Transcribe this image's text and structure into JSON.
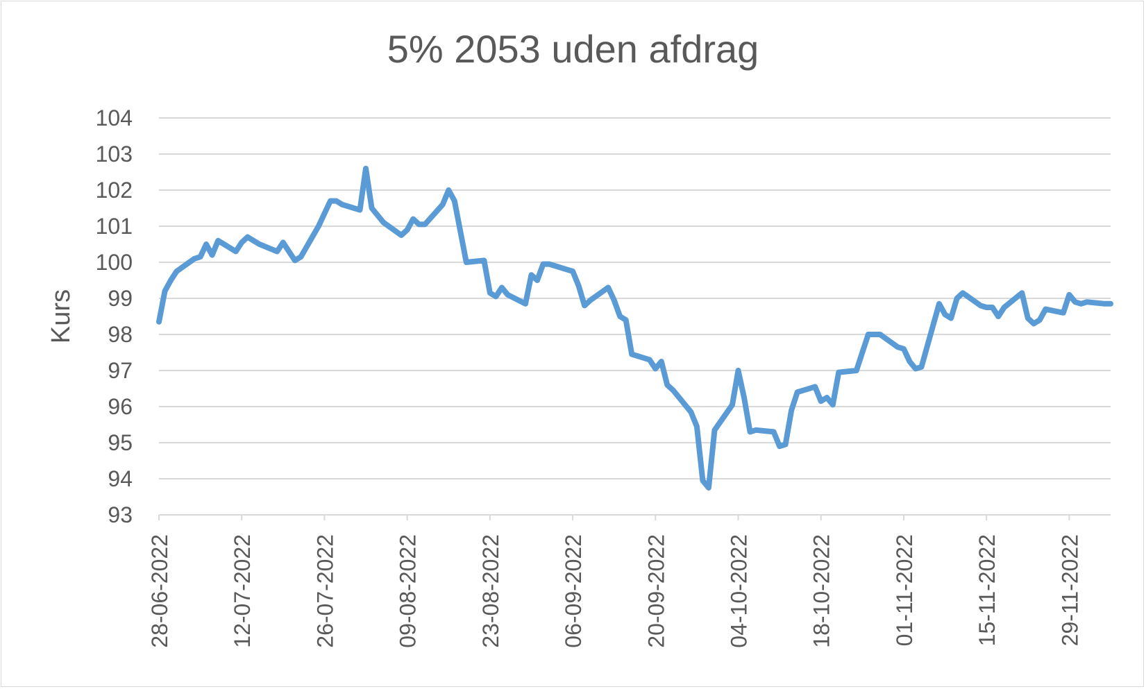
{
  "chart_data": {
    "type": "line",
    "title": "5% 2053 uden afdrag",
    "xlabel": "",
    "ylabel": "Kurs",
    "ylim": [
      93,
      104
    ],
    "yticks": [
      "93",
      "94",
      "95",
      "96",
      "97",
      "98",
      "99",
      "100",
      "101",
      "102",
      "103",
      "104"
    ],
    "x_tick_labels": [
      "28-06-2022",
      "12-07-2022",
      "26-07-2022",
      "09-08-2022",
      "23-08-2022",
      "06-09-2022",
      "20-09-2022",
      "04-10-2022",
      "18-10-2022",
      "01-11-2022",
      "15-11-2022",
      "29-11-2022"
    ],
    "grid": true,
    "legend": "none",
    "line_color": "#5b9bd5",
    "series": [
      {
        "x": [
          "28-06-2022",
          "29-06-2022",
          "30-06-2022",
          "01-07-2022",
          "04-07-2022",
          "05-07-2022",
          "06-07-2022",
          "07-07-2022",
          "08-07-2022",
          "11-07-2022",
          "12-07-2022",
          "13-07-2022",
          "14-07-2022",
          "15-07-2022",
          "18-07-2022",
          "19-07-2022",
          "20-07-2022",
          "21-07-2022",
          "22-07-2022",
          "25-07-2022",
          "26-07-2022",
          "27-07-2022",
          "28-07-2022",
          "29-07-2022",
          "01-08-2022",
          "02-08-2022",
          "03-08-2022",
          "04-08-2022",
          "05-08-2022",
          "08-08-2022",
          "09-08-2022",
          "10-08-2022",
          "11-08-2022",
          "12-08-2022",
          "15-08-2022",
          "16-08-2022",
          "17-08-2022",
          "18-08-2022",
          "19-08-2022",
          "22-08-2022",
          "23-08-2022",
          "24-08-2022",
          "25-08-2022",
          "26-08-2022",
          "29-08-2022",
          "30-08-2022",
          "31-08-2022",
          "01-09-2022",
          "02-09-2022",
          "05-09-2022",
          "06-09-2022",
          "07-09-2022",
          "08-09-2022",
          "09-09-2022",
          "12-09-2022",
          "13-09-2022",
          "14-09-2022",
          "15-09-2022",
          "16-09-2022",
          "19-09-2022",
          "20-09-2022",
          "21-09-2022",
          "22-09-2022",
          "23-09-2022",
          "26-09-2022",
          "27-09-2022",
          "28-09-2022",
          "29-09-2022",
          "30-09-2022",
          "03-10-2022",
          "04-10-2022",
          "05-10-2022",
          "06-10-2022",
          "07-10-2022",
          "10-10-2022",
          "11-10-2022",
          "12-10-2022",
          "13-10-2022",
          "14-10-2022",
          "17-10-2022",
          "18-10-2022",
          "19-10-2022",
          "20-10-2022",
          "21-10-2022",
          "24-10-2022",
          "25-10-2022",
          "26-10-2022",
          "27-10-2022",
          "28-10-2022",
          "31-10-2022",
          "01-11-2022",
          "02-11-2022",
          "03-11-2022",
          "04-11-2022",
          "07-11-2022",
          "08-11-2022",
          "09-11-2022",
          "10-11-2022",
          "11-11-2022",
          "14-11-2022",
          "15-11-2022",
          "16-11-2022",
          "17-11-2022",
          "18-11-2022",
          "21-11-2022",
          "22-11-2022",
          "23-11-2022",
          "24-11-2022",
          "25-11-2022",
          "28-11-2022",
          "29-11-2022",
          "30-11-2022",
          "01-12-2022",
          "02-12-2022",
          "05-12-2022",
          "06-12-2022"
        ],
        "values": [
          98.35,
          99.2,
          99.5,
          99.75,
          100.1,
          100.15,
          100.5,
          100.2,
          100.6,
          100.3,
          100.55,
          100.7,
          100.6,
          100.5,
          100.3,
          100.55,
          100.3,
          100.05,
          100.15,
          101.0,
          101.35,
          101.7,
          101.7,
          101.6,
          101.45,
          102.6,
          101.5,
          101.3,
          101.1,
          100.75,
          100.9,
          101.2,
          101.05,
          101.05,
          101.6,
          102.0,
          101.7,
          100.85,
          100.0,
          100.05,
          99.15,
          99.05,
          99.3,
          99.1,
          98.85,
          99.65,
          99.5,
          99.95,
          99.95,
          99.8,
          99.75,
          99.35,
          98.8,
          98.95,
          99.3,
          98.95,
          98.5,
          98.4,
          97.45,
          97.3,
          97.05,
          97.25,
          96.6,
          96.45,
          95.85,
          95.45,
          93.95,
          93.75,
          95.35,
          96.05,
          97.0,
          96.25,
          95.3,
          95.35,
          95.3,
          94.9,
          94.95,
          95.9,
          96.4,
          96.55,
          96.15,
          96.25,
          96.05,
          96.95,
          97.0,
          97.5,
          98.0,
          98.0,
          98.0,
          97.65,
          97.6,
          97.25,
          97.05,
          97.1,
          98.85,
          98.55,
          98.45,
          99.0,
          99.15,
          98.8,
          98.75,
          98.75,
          98.5,
          98.75,
          99.15,
          98.45,
          98.3,
          98.4,
          98.7,
          98.6,
          99.1,
          98.9,
          98.85,
          98.9,
          98.85,
          98.85
        ]
      }
    ]
  }
}
